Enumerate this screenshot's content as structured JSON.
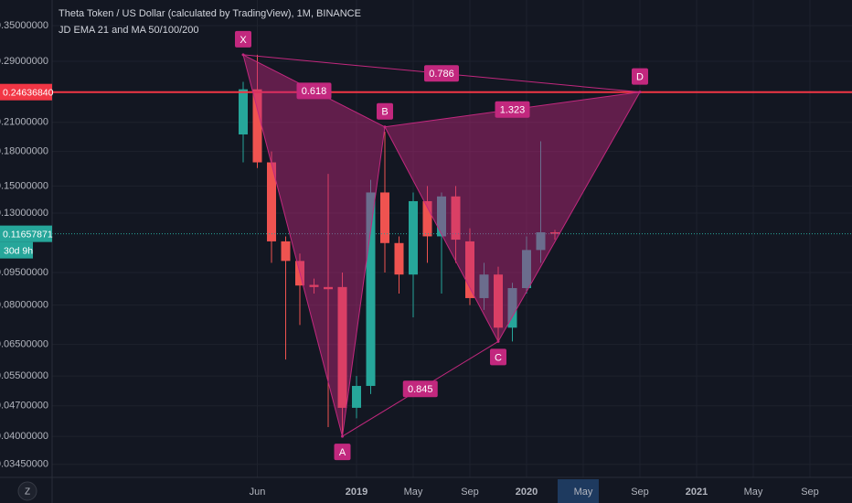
{
  "chart_data": {
    "type": "candlestick",
    "title": "Theta Token / US Dollar (calculated by TradingView), 1M, BINANCE",
    "subtitle": "JD EMA 21 and MA 50/100/200",
    "log_scale": true,
    "grid": true,
    "up_color": "#26a69a",
    "down_color": "#ef5350",
    "x": [
      "2018-05",
      "2018-06",
      "2018-07",
      "2018-08",
      "2018-09",
      "2018-10",
      "2018-11",
      "2018-12",
      "2019-01",
      "2019-02",
      "2019-03",
      "2019-04",
      "2019-05",
      "2019-06",
      "2019-07",
      "2019-08",
      "2019-09",
      "2019-10",
      "2019-11",
      "2019-12",
      "2020-01",
      "2020-02",
      "2020-03"
    ],
    "open": [
      0.197,
      0.25,
      0.17,
      0.112,
      0.101,
      0.089,
      0.088,
      0.088,
      0.0465,
      0.0522,
      0.145,
      0.111,
      0.094,
      0.1385,
      0.115,
      0.142,
      0.112,
      0.083,
      0.094,
      0.071,
      0.0875,
      0.107,
      0.1175
    ],
    "close": [
      0.25,
      0.17,
      0.112,
      0.101,
      0.0887,
      0.088,
      0.087,
      0.0465,
      0.0522,
      0.145,
      0.111,
      0.094,
      0.1385,
      0.115,
      0.142,
      0.113,
      0.083,
      0.094,
      0.071,
      0.0875,
      0.107,
      0.1175,
      0.1166
    ],
    "high": [
      0.26,
      0.3,
      0.18,
      0.115,
      0.105,
      0.092,
      0.16,
      0.095,
      0.055,
      0.155,
      0.2,
      0.115,
      0.145,
      0.15,
      0.145,
      0.15,
      0.12,
      0.1,
      0.098,
      0.09,
      0.115,
      0.19,
      0.119
    ],
    "low": [
      0.17,
      0.165,
      0.1,
      0.06,
      0.072,
      0.085,
      0.042,
      0.04,
      0.044,
      0.05,
      0.095,
      0.085,
      0.075,
      0.1,
      0.085,
      0.1,
      0.08,
      0.078,
      0.066,
      0.066,
      0.085,
      0.1,
      0.113
    ],
    "ylim": [
      0.0322,
      0.4007
    ],
    "yticks": [
      {
        "value": 0.35,
        "label": "0.35000000"
      },
      {
        "value": 0.29,
        "label": "0.29000000"
      },
      {
        "value": 0.21,
        "label": "0.21000000"
      },
      {
        "value": 0.18,
        "label": "0.18000000"
      },
      {
        "value": 0.15,
        "label": "0.15000000"
      },
      {
        "value": 0.13,
        "label": "0.13000000"
      },
      {
        "value": 0.095,
        "label": "0.09500000"
      },
      {
        "value": 0.08,
        "label": "0.08000000"
      },
      {
        "value": 0.065,
        "label": "0.06500000"
      },
      {
        "value": 0.055,
        "label": "0.05500000"
      },
      {
        "value": 0.047,
        "label": "0.04700000"
      },
      {
        "value": 0.04,
        "label": "0.04000000"
      },
      {
        "value": 0.0345,
        "label": "0.03450000"
      }
    ],
    "xticks": [
      {
        "value": "2018-06",
        "label": "Jun"
      },
      {
        "value": "2019-01",
        "label": "2019"
      },
      {
        "value": "2019-05",
        "label": "May"
      },
      {
        "value": "2019-09",
        "label": "Sep"
      },
      {
        "value": "2020-01",
        "label": "2020"
      },
      {
        "value": "2020-05",
        "label": "May"
      },
      {
        "value": "2020-09",
        "label": "Sep"
      },
      {
        "value": "2021-01",
        "label": "2021"
      },
      {
        "value": "2021-05",
        "label": "May"
      },
      {
        "value": "2021-09",
        "label": "Sep"
      }
    ],
    "price_line": {
      "value": 0.2463684,
      "label": "0.24636840",
      "color": "#f23645"
    },
    "last_price": {
      "value": 0.11657871,
      "label": "0.11657871",
      "countdown": "30d 9h",
      "color": "#26a69a"
    },
    "pattern": {
      "color": "#c2287e",
      "points": [
        {
          "label": "X",
          "x": "2018-05",
          "price": 0.3
        },
        {
          "label": "A",
          "x": "2018-12",
          "price": 0.04
        },
        {
          "label": "B",
          "x": "2019-03",
          "price": 0.205
        },
        {
          "label": "C",
          "x": "2019-11",
          "price": 0.066
        },
        {
          "label": "D",
          "x": "2020-09",
          "price": 0.2464
        }
      ],
      "ratios": [
        0.618,
        0.786,
        1.323,
        0.845
      ]
    }
  }
}
